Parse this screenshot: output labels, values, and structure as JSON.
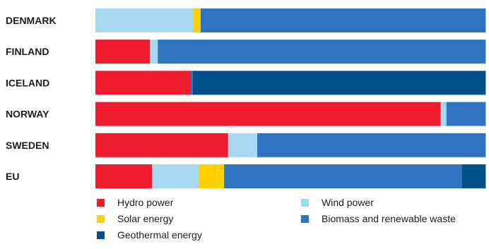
{
  "chart_data": {
    "type": "bar",
    "orientation": "horizontal",
    "stacked": true,
    "normalized_percent": true,
    "categories": [
      "DENMARK",
      "FINLAND",
      "ICELAND",
      "NORWAY",
      "SWEDEN",
      "EU"
    ],
    "series": [
      {
        "name": "Hydro power",
        "color": "#ee1c2e",
        "values": [
          0,
          14,
          24.5,
          88.5,
          34,
          14.5
        ]
      },
      {
        "name": "Wind power",
        "color": "#a8d8f0",
        "values": [
          25,
          2,
          0,
          1.5,
          7.5,
          12
        ]
      },
      {
        "name": "Solar energy",
        "color": "#ffd100",
        "values": [
          2,
          0,
          0,
          0,
          0,
          6.5
        ]
      },
      {
        "name": "Biomass and renewable waste",
        "color": "#2f74c0",
        "values": [
          73,
          84,
          0.5,
          10,
          58.5,
          61
        ]
      },
      {
        "name": "Geothermal energy",
        "color": "#00508c",
        "values": [
          0,
          0,
          75,
          0,
          0,
          6
        ]
      }
    ],
    "legend_order": [
      "Hydro power",
      "Wind power",
      "Solar energy",
      "Biomass and renewable waste",
      "Geothermal energy"
    ],
    "legend_position": "bottom",
    "xlim": [
      0,
      100
    ],
    "grid": false,
    "title": "",
    "xlabel": "",
    "ylabel": ""
  }
}
